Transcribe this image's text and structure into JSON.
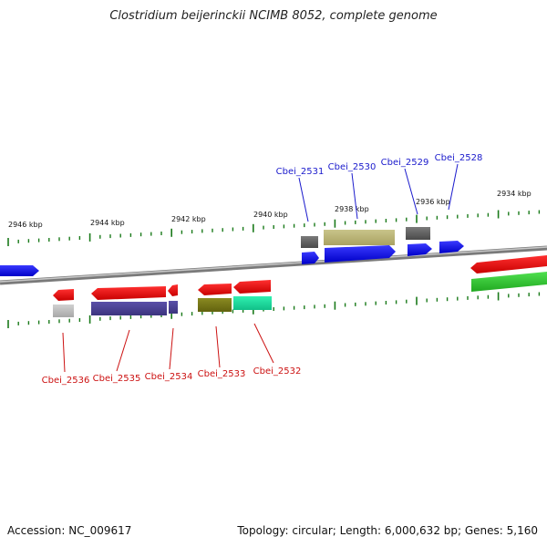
{
  "title": "Clostridium beijerinckii NCIMB 8052, complete genome",
  "footer": {
    "accession": "Accession: NC_009617",
    "summary": "Topology: circular; Length: 6,000,632 bp; Genes: 5,160"
  },
  "scale_labels": [
    "2946 kbp",
    "2944 kbp",
    "2942 kbp",
    "2940 kbp",
    "2938 kbp",
    "2936 kbp",
    "2934 kbp"
  ],
  "genes_top": [
    "Cbei_2531",
    "Cbei_2530",
    "Cbei_2529",
    "Cbei_2528"
  ],
  "genes_bottom": [
    "Cbei_2536",
    "Cbei_2535",
    "Cbei_2534",
    "Cbei_2533",
    "Cbei_2532"
  ],
  "colors": {
    "top_label": "#1a1acc",
    "bottom_label": "#cc1111",
    "backbone": "#8a8a8a",
    "tick": "#1a7a1a"
  }
}
